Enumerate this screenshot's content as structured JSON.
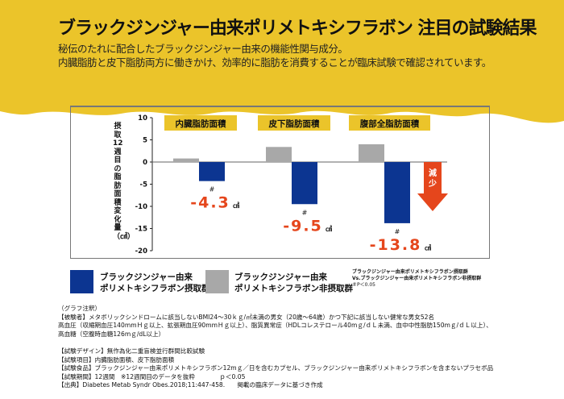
{
  "header": {
    "title": "ブラックジンジャー由来ポリメトキシフラボン 注目の試験結果",
    "lines": [
      "秘伝のたれに配合したブラックジンジャー由来の機能性関与成分。",
      "内臓脂肪と皮下脂肪両方に働きかけ、効率的に脂肪を消費することが臨床試験で確認されています。"
    ]
  },
  "colors": {
    "yellow": "#EBC42A",
    "blue": "#0C3591",
    "gray": "#A8A8A8",
    "red": "#E5461C",
    "label_bg": "#EBC42A"
  },
  "chart_data": {
    "type": "bar",
    "ylabel": "摂取12週目の脂肪面積変化量（㎠）",
    "ylim": [
      -20,
      10
    ],
    "yticks": [
      10,
      5,
      0,
      -5,
      -10,
      -15,
      -20
    ],
    "categories": [
      "内臓脂肪面積",
      "皮下脂肪面積",
      "腹部全脂肪面積"
    ],
    "series": [
      {
        "name": "ブラックジンジャー由来ポリメトキシフラボン非摂取群",
        "color": "#A8A8A8",
        "values": [
          0.8,
          3.4,
          4.0
        ]
      },
      {
        "name": "ブラックジンジャー由来ポリメトキシフラボン摂取群",
        "color": "#0C3591",
        "values": [
          -4.3,
          -9.5,
          -13.8
        ]
      }
    ],
    "significance_marks": [
      "#",
      "#",
      "#"
    ],
    "data_labels": [
      "-4.3",
      "-9.5",
      "-13.8"
    ],
    "unit": "㎠",
    "arrow_label": "減少",
    "grid": false
  },
  "legend": {
    "treated_line1": "ブラックジンジャー由来",
    "treated_line2": "ポリメトキシフラボン摂取群",
    "placebo_line1": "ブラックジンジャー由来",
    "placebo_line2": "ポリメトキシフラボン非摂取群",
    "note1": "ブラックジンジャー由来ポリメトキシフラボン摂取群",
    "note2": "Vs.ブラックジンジャー由来ポリメトキシフラボン非摂取群",
    "note3": "＃P＜0.05"
  },
  "footnotes": [
    "（グラフ注釈）",
    "【被験者】メタボリックシンドロームに該当しないBMI24～30ｋｇ/㎡未満の男女（20歳～64歳）かつ下記に該当しない健常な男女52名",
    "高血圧（収縮期血圧140mmＨｇ以上、拡張期血圧90mmＨｇ以上）、脂質異常症（HDLコレステロール40mｇ/ｄＬ未満、血中中性脂肪150mｇ/ｄＬ以上）、",
    "高血糖（空腹時血糖126mｇ/dL以上）",
    "",
    "【試験デザイン】無作為化二重盲検並行群間比較試験",
    "【試験項目】内臓脂肪面積、皮下脂肪面積",
    "【試験食品】ブラックジンジャー由来ポリメトキシフラボン12mｇ／日を含むカプセル、ブラックジンジャー由来ポリメトキシフラボンを含まないプラセボ品",
    "【試験期間】12週間　※12週間目のデータを抜粋　　　　ｐ＜0.05",
    "【出典】Diabetes Metab Syndr Obes.2018;11:447-458.　　掲載の臨床データに基づき作成"
  ]
}
